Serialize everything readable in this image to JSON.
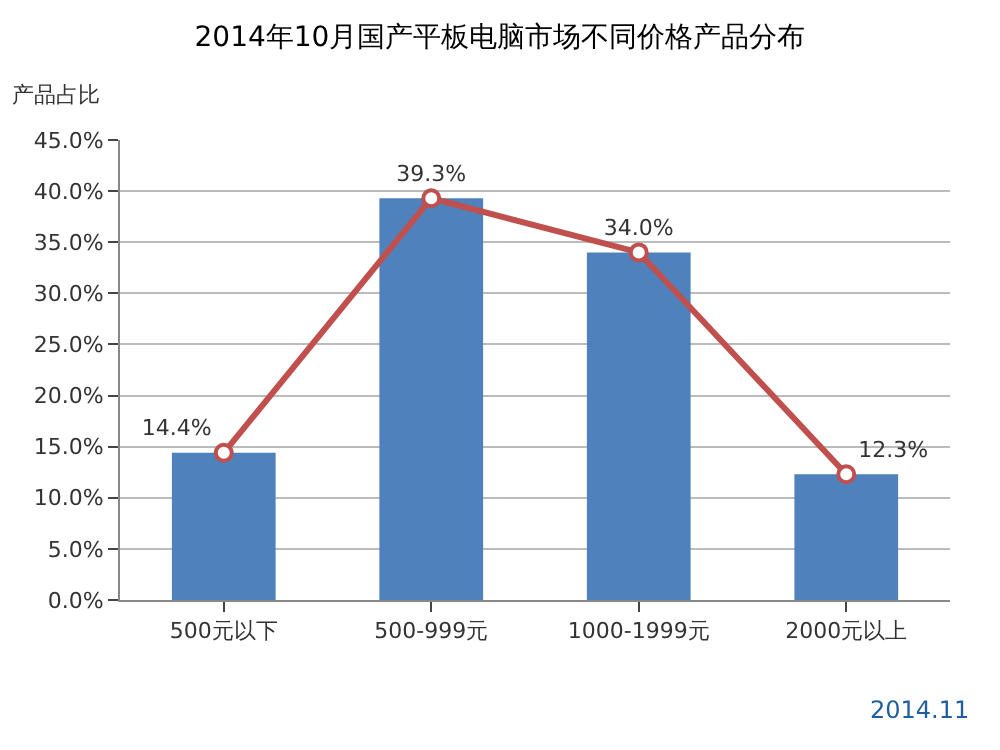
{
  "chart_data": {
    "type": "bar",
    "title": "2014年10月国产平板电脑市场不同价格产品分布",
    "ylabel": "产品占比",
    "categories": [
      "500元以下",
      "500-999元",
      "1000-1999元",
      "2000元以上"
    ],
    "series": [
      {
        "color": "#4f81bd",
        "values": [
          14.4,
          39.3,
          34.0,
          12.3
        ]
      },
      {
        "type": "line",
        "color": "#c0504d",
        "values": [
          14.4,
          39.3,
          34.0,
          12.3
        ],
        "value_labels": [
          "14.4%",
          "39.3%",
          "34.0%",
          "12.3%"
        ],
        "marker": "circle"
      }
    ],
    "ylim": [
      0,
      45
    ],
    "yticks": [
      {
        "value": 0,
        "label": "0.0%"
      },
      {
        "value": 5,
        "label": "5.0%"
      },
      {
        "value": 10,
        "label": "10.0%"
      },
      {
        "value": 15,
        "label": "15.0%"
      },
      {
        "value": 20,
        "label": "20.0%"
      },
      {
        "value": 25,
        "label": "25.0%"
      },
      {
        "value": 30,
        "label": "30.0%"
      },
      {
        "value": 35,
        "label": "35.0%"
      },
      {
        "value": 40,
        "label": "40.0%"
      },
      {
        "value": 45,
        "label": "45.0%"
      }
    ],
    "grid": "y",
    "annotations": [
      "2014.11"
    ]
  }
}
